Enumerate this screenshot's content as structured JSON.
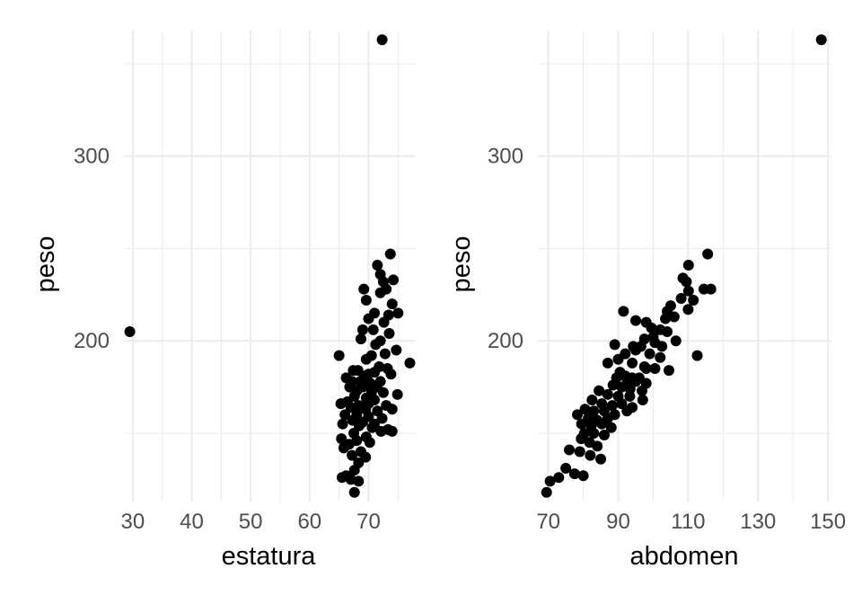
{
  "chart_data": [
    {
      "type": "scatter",
      "xlabel": "estatura",
      "ylabel": "peso",
      "xlim": [
        28.5,
        78
      ],
      "ylim": [
        113,
        368
      ],
      "x_ticks": [
        30,
        40,
        50,
        60,
        70
      ],
      "y_ticks": [
        200,
        300
      ],
      "grid": true,
      "points": [
        [
          72.3,
          363
        ],
        [
          29.5,
          205
        ],
        [
          73.7,
          247
        ],
        [
          71.5,
          241
        ],
        [
          72,
          236
        ],
        [
          72.5,
          232
        ],
        [
          74.2,
          233
        ],
        [
          73,
          228
        ],
        [
          72,
          226
        ],
        [
          69.2,
          228
        ],
        [
          69.6,
          222
        ],
        [
          74,
          220
        ],
        [
          75,
          215
        ],
        [
          73.4,
          214
        ],
        [
          71,
          215
        ],
        [
          70,
          212
        ],
        [
          72.6,
          210
        ],
        [
          70.8,
          206
        ],
        [
          69,
          206
        ],
        [
          68.7,
          201
        ],
        [
          73.5,
          204
        ],
        [
          72,
          200
        ],
        [
          71.2,
          198
        ],
        [
          74.7,
          195
        ],
        [
          72.8,
          193
        ],
        [
          70.5,
          192
        ],
        [
          65,
          192
        ],
        [
          69.6,
          190
        ],
        [
          77,
          188
        ],
        [
          71.8,
          186
        ],
        [
          73.2,
          185
        ],
        [
          67.4,
          184
        ],
        [
          68.2,
          184
        ],
        [
          70,
          182
        ],
        [
          71,
          183
        ],
        [
          69.3,
          181
        ],
        [
          73.8,
          182
        ],
        [
          66.2,
          180
        ],
        [
          67.2,
          178
        ],
        [
          68.6,
          178
        ],
        [
          70.3,
          177
        ],
        [
          72,
          178
        ],
        [
          69,
          175
        ],
        [
          71.4,
          175
        ],
        [
          66.8,
          175
        ],
        [
          68,
          173
        ],
        [
          70.5,
          172
        ],
        [
          72.5,
          172
        ],
        [
          74.9,
          171
        ],
        [
          67.6,
          170
        ],
        [
          69.6,
          169
        ],
        [
          71,
          168
        ],
        [
          66.4,
          167
        ],
        [
          68.3,
          165
        ],
        [
          70,
          166
        ],
        [
          73,
          165
        ],
        [
          65.3,
          166
        ],
        [
          67,
          164
        ],
        [
          69.5,
          163
        ],
        [
          71.5,
          162
        ],
        [
          74,
          163
        ],
        [
          66,
          160
        ],
        [
          68,
          160
        ],
        [
          70,
          159
        ],
        [
          72.3,
          158
        ],
        [
          67.3,
          157
        ],
        [
          69,
          156
        ],
        [
          71,
          155
        ],
        [
          65.6,
          155
        ],
        [
          68.4,
          154
        ],
        [
          70.6,
          153
        ],
        [
          73.3,
          152
        ],
        [
          72.1,
          151
        ],
        [
          74,
          151
        ],
        [
          67.5,
          150
        ],
        [
          69.6,
          148
        ],
        [
          65.4,
          147
        ],
        [
          68,
          146
        ],
        [
          66.7,
          144
        ],
        [
          70.2,
          145
        ],
        [
          65.8,
          142
        ],
        [
          68.7,
          140
        ],
        [
          67.2,
          138
        ],
        [
          69.5,
          137
        ],
        [
          68.3,
          134
        ],
        [
          67.6,
          130
        ],
        [
          66.2,
          127
        ],
        [
          65.5,
          126
        ],
        [
          67,
          125
        ],
        [
          68.3,
          124
        ],
        [
          67.6,
          118
        ]
      ]
    },
    {
      "type": "scatter",
      "xlabel": "abdomen",
      "ylabel": "peso",
      "xlim": [
        67,
        151
      ],
      "ylim": [
        113,
        368
      ],
      "x_ticks": [
        70,
        90,
        110,
        130,
        150
      ],
      "y_ticks": [
        200,
        300
      ],
      "grid": true,
      "points": [
        [
          148.1,
          363
        ],
        [
          115.6,
          247
        ],
        [
          110.1,
          241
        ],
        [
          108.5,
          234
        ],
        [
          109.5,
          232
        ],
        [
          114.5,
          228
        ],
        [
          116.5,
          228
        ],
        [
          110.1,
          227
        ],
        [
          111.5,
          222
        ],
        [
          108,
          223
        ],
        [
          105,
          219
        ],
        [
          104,
          216
        ],
        [
          106,
          213
        ],
        [
          103.5,
          212
        ],
        [
          110,
          217
        ],
        [
          91.5,
          216
        ],
        [
          95,
          211
        ],
        [
          98,
          210
        ],
        [
          99.5,
          207
        ],
        [
          102,
          206
        ],
        [
          104,
          205
        ],
        [
          100,
          202
        ],
        [
          106.5,
          200
        ],
        [
          97.5,
          201
        ],
        [
          100.5,
          199
        ],
        [
          102.5,
          197
        ],
        [
          94.3,
          197
        ],
        [
          96.5,
          197
        ],
        [
          89,
          198
        ],
        [
          92,
          193
        ],
        [
          95,
          195
        ],
        [
          99,
          193
        ],
        [
          102,
          191
        ],
        [
          112.6,
          192
        ],
        [
          90,
          190
        ],
        [
          87,
          188
        ],
        [
          94,
          188
        ],
        [
          97.5,
          186
        ],
        [
          98,
          185
        ],
        [
          100.5,
          185
        ],
        [
          104.5,
          184
        ],
        [
          90.5,
          183
        ],
        [
          92,
          181
        ],
        [
          94,
          180
        ],
        [
          96,
          180
        ],
        [
          89.5,
          180
        ],
        [
          92.6,
          178
        ],
        [
          95,
          178
        ],
        [
          98,
          177
        ],
        [
          88.5,
          176
        ],
        [
          91,
          175
        ],
        [
          93.4,
          174
        ],
        [
          96.8,
          173
        ],
        [
          84.5,
          173
        ],
        [
          87,
          171
        ],
        [
          90,
          170
        ],
        [
          93.3,
          170
        ],
        [
          97,
          168
        ],
        [
          82.5,
          168
        ],
        [
          85.3,
          166
        ],
        [
          88.3,
          165
        ],
        [
          91,
          166
        ],
        [
          94,
          164
        ],
        [
          80.5,
          163
        ],
        [
          83,
          162
        ],
        [
          86,
          162
        ],
        [
          89,
          160
        ],
        [
          92.5,
          162
        ],
        [
          78.3,
          160
        ],
        [
          81.4,
          158
        ],
        [
          84,
          157
        ],
        [
          87,
          158
        ],
        [
          79.5,
          155
        ],
        [
          82.3,
          154
        ],
        [
          85.3,
          155
        ],
        [
          88,
          153
        ],
        [
          80.3,
          150
        ],
        [
          83,
          150
        ],
        [
          86,
          149
        ],
        [
          79.4,
          147
        ],
        [
          81.8,
          145
        ],
        [
          84,
          143
        ],
        [
          76,
          141
        ],
        [
          79,
          140
        ],
        [
          82,
          138
        ],
        [
          85,
          136
        ],
        [
          75,
          131
        ],
        [
          77.5,
          128
        ],
        [
          80,
          127
        ],
        [
          73,
          126
        ],
        [
          70.5,
          124
        ],
        [
          69.5,
          118
        ]
      ]
    }
  ]
}
